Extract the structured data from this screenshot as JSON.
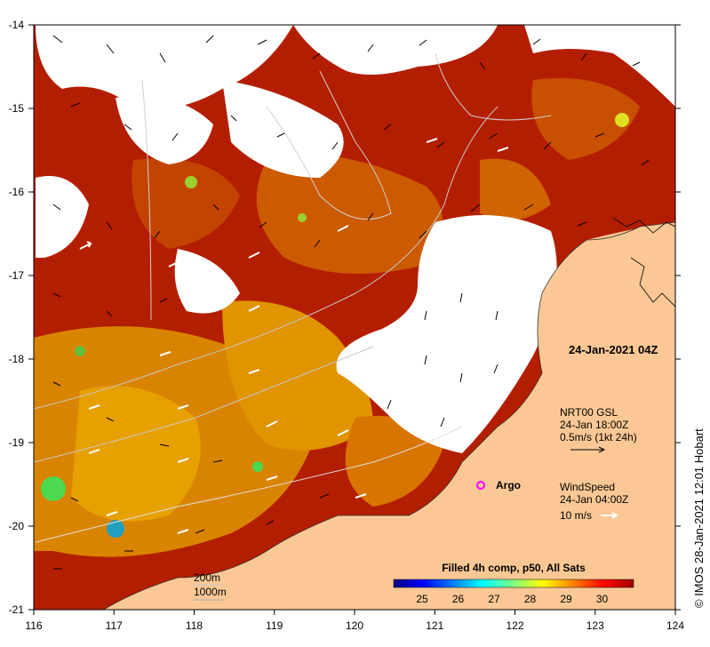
{
  "map": {
    "date_label": "24-Jan-2021 04Z",
    "x_ticks": [
      "116",
      "117",
      "118",
      "119",
      "120",
      "121",
      "122",
      "123",
      "124"
    ],
    "y_ticks": [
      "-14",
      "-15",
      "-16",
      "-17",
      "-18",
      "-19",
      "-20",
      "-21"
    ],
    "current_legend": {
      "line1": "NRT00 GSL",
      "line2": "24-Jan 18:00Z",
      "line3": "0.5m/s (1kt 24h)"
    },
    "wind_legend": {
      "line1": "WindSpeed",
      "line2": "24-Jan 04:00Z",
      "line3": "10 m/s"
    },
    "argo_label": "Argo",
    "depth_legend": [
      "200m",
      "1000m"
    ],
    "colorbar": {
      "title": "Filled 4h comp, p50, All Sats",
      "ticks": [
        "25",
        "26",
        "27",
        "28",
        "29",
        "30"
      ],
      "stops": [
        "#00007f",
        "#0000ff",
        "#0080ff",
        "#00ffff",
        "#80ff80",
        "#ffff00",
        "#ff8000",
        "#ff0000",
        "#a00000"
      ]
    },
    "credit": "© IMOS 28-Jan-2021 12:01 Hobart",
    "colors": {
      "land": "#fbc895",
      "sst_hot": "#b41e00",
      "sst_warm": "#c84f00",
      "sst_mid": "#dc8000",
      "sst_cool": "#e6a000",
      "cloud": "#ffffff"
    }
  }
}
